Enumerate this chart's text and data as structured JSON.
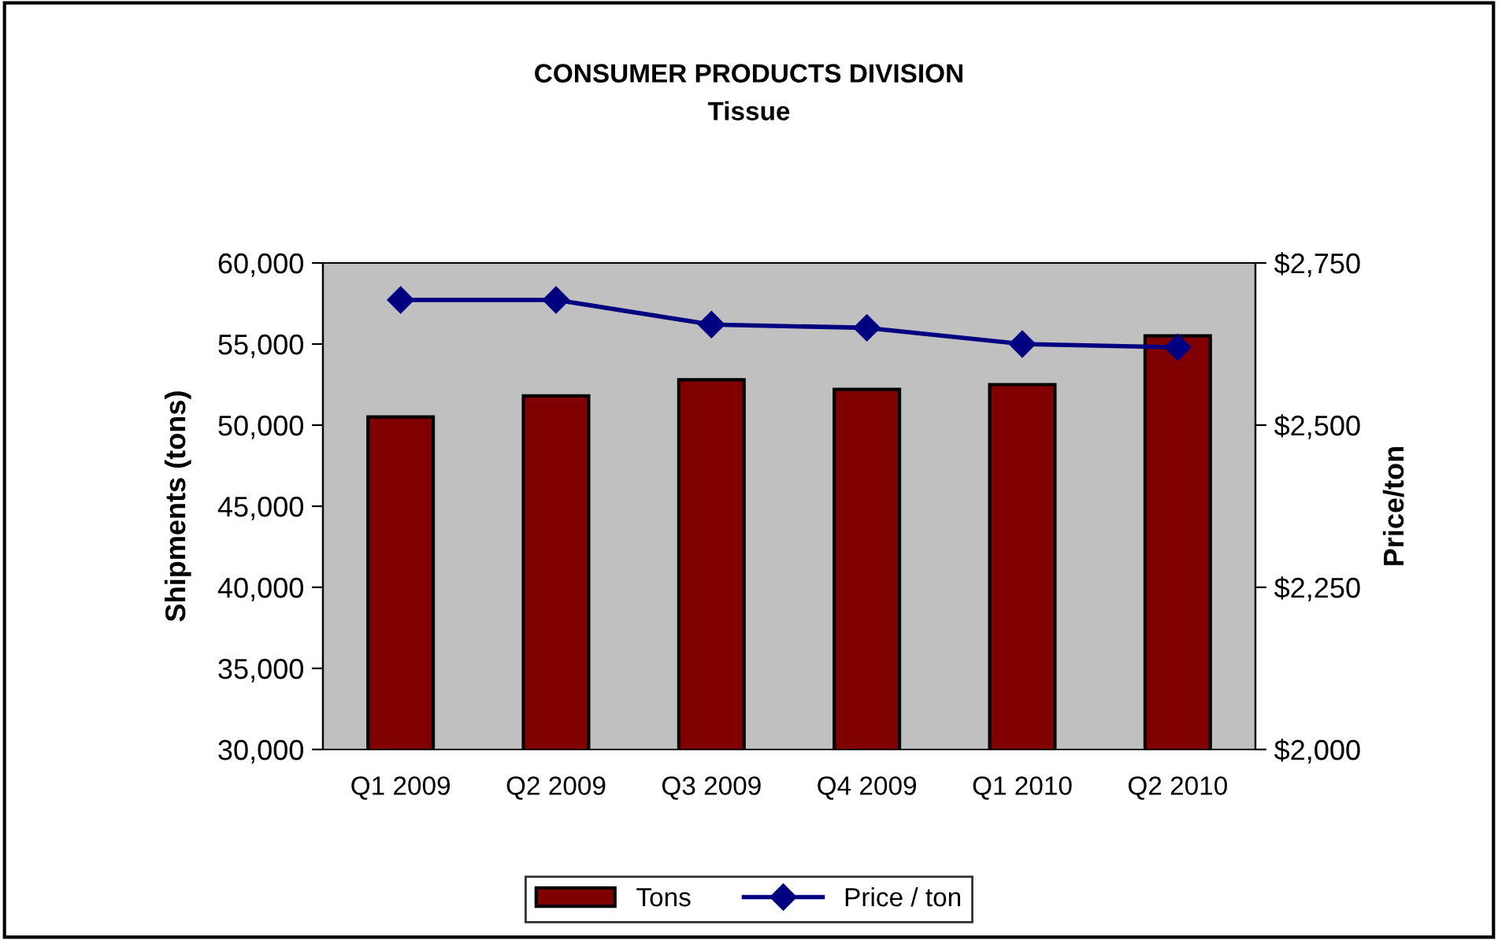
{
  "chart_data": {
    "type": "bar",
    "title": "CONSUMER PRODUCTS DIVISION",
    "subtitle": "Tissue",
    "ylabel": "Shipments (tons)",
    "y2label": "Price/ton",
    "categories": [
      "Q1 2009",
      "Q2 2009",
      "Q3 2009",
      "Q4 2009",
      "Q1 2010",
      "Q2 2010"
    ],
    "series": [
      {
        "name": "Tons",
        "color": "#800000",
        "values": [
          50500,
          51800,
          52800,
          52200,
          52500,
          55500
        ]
      },
      {
        "name": "Price / ton",
        "type": "line",
        "axis": "y2",
        "color": "#000080",
        "marker": "diamond",
        "values": [
          2693,
          2693,
          2655,
          2650,
          2625,
          2620
        ]
      }
    ],
    "ylim": [
      30000,
      60000
    ],
    "yticks": [
      {
        "value": 30000,
        "label": "30,000"
      },
      {
        "value": 35000,
        "label": "35,000"
      },
      {
        "value": 40000,
        "label": "40,000"
      },
      {
        "value": 45000,
        "label": "45,000"
      },
      {
        "value": 50000,
        "label": "50,000"
      },
      {
        "value": 55000,
        "label": "55,000"
      },
      {
        "value": 60000,
        "label": "60,000"
      }
    ],
    "y2lim": [
      2000,
      2750
    ],
    "y2ticks": [
      {
        "value": 2000,
        "label": "$2,000"
      },
      {
        "value": 2250,
        "label": "$2,250"
      },
      {
        "value": 2500,
        "label": "$2,500"
      },
      {
        "value": 2750,
        "label": "$2,750"
      }
    ],
    "grid": false,
    "legend": "bottom"
  }
}
